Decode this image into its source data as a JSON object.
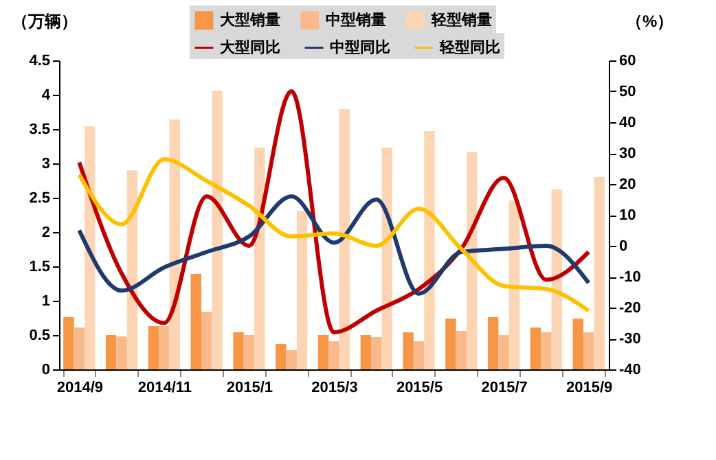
{
  "chart_data": {
    "type": "bar",
    "categories": [
      "2014/9",
      null,
      "2014/11",
      null,
      "2015/1",
      null,
      "2015/3",
      null,
      "2015/5",
      null,
      "2015/7",
      null,
      "2015/9"
    ],
    "ylabel": "（万辆）",
    "y2label": "（%）",
    "ylim": [
      0,
      4.5
    ],
    "yticks": [
      0,
      0.5,
      1,
      1.5,
      2,
      2.5,
      3,
      3.5,
      4,
      4.5
    ],
    "y2lim": [
      -40,
      60
    ],
    "y2ticks": [
      -40,
      -30,
      -20,
      -10,
      0,
      10,
      20,
      30,
      40,
      50,
      60
    ],
    "grid": false,
    "legend": "top",
    "line_style": "solid",
    "marker": "none",
    "series": [
      {
        "name": "大型销量",
        "color": "#f79646",
        "values": [
          0.76,
          0.5,
          0.63,
          1.39,
          0.54,
          0.37,
          0.5,
          0.5,
          0.54,
          0.74,
          0.76,
          0.61,
          0.74
        ]
      },
      {
        "name": "中型销量",
        "color": "#fab98a",
        "values": [
          0.61,
          0.48,
          0.63,
          0.84,
          0.5,
          0.28,
          0.41,
          0.47,
          0.41,
          0.56,
          0.5,
          0.54,
          0.54
        ]
      },
      {
        "name": "轻型销量",
        "color": "#fcd5b4",
        "values": [
          3.54,
          2.9,
          3.64,
          4.06,
          3.23,
          2.31,
          3.79,
          3.23,
          3.47,
          3.17,
          2.46,
          2.62,
          2.8
        ]
      },
      {
        "name": "大型同比",
        "type": "line",
        "axis": "y2",
        "color": "#c00000",
        "values": [
          27,
          -9,
          -25,
          16,
          0,
          50,
          -28,
          -21,
          -14,
          -1,
          22,
          -11,
          -2
        ]
      },
      {
        "name": "中型同比",
        "type": "line",
        "axis": "y2",
        "color": "#1f3a6e",
        "values": [
          5,
          -14.5,
          -7,
          -2,
          3,
          16,
          1,
          15,
          -15.5,
          -2,
          -1,
          0,
          -12
        ]
      },
      {
        "name": "轻型同比",
        "type": "line",
        "axis": "y2",
        "color": "#ffc000",
        "values": [
          23,
          7,
          28,
          21,
          13,
          3,
          4,
          0,
          12,
          -1,
          -13,
          -14,
          -21
        ]
      }
    ]
  }
}
